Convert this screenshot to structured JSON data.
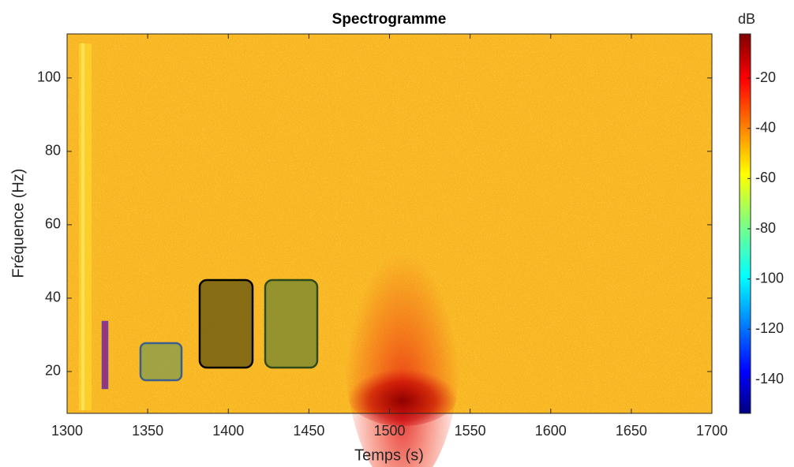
{
  "chart_data": {
    "type": "spectrogram",
    "title": "Spectrogramme",
    "xlabel": "Temps (s)",
    "ylabel": "Fréquence (Hz)",
    "xlim": [
      1300,
      1700
    ],
    "xticks": [
      1300,
      1350,
      1400,
      1450,
      1500,
      1550,
      1600,
      1650,
      1700
    ],
    "ylim": [
      8.6,
      112
    ],
    "yticks": [
      20,
      40,
      60,
      80,
      100
    ],
    "colorbar": {
      "label": "dB",
      "lim": [
        -153.5,
        -2.4
      ],
      "ticks": [
        -140,
        -120,
        -100,
        -80,
        -60,
        -40,
        -20
      ]
    }
  }
}
